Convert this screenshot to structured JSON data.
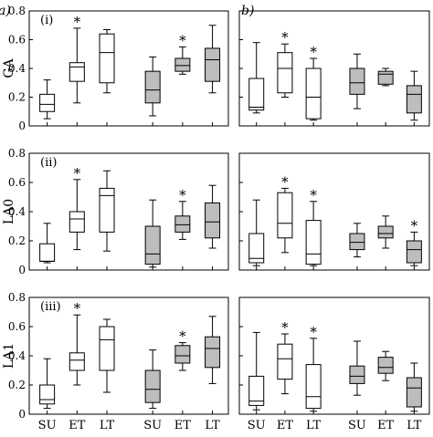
{
  "figure": {
    "panel_labels": [
      "a)",
      "b)"
    ],
    "row_labels": [
      "(i)",
      "(ii)",
      "(iii)"
    ],
    "star_label": "*"
  },
  "chart_data": [
    {
      "type": "box",
      "column": "a",
      "row": "i",
      "ylabel": "GA",
      "ylim": [
        0,
        0.8
      ],
      "yticks": [
        "0",
        "0.2",
        "0.4",
        "0.6",
        "0.8"
      ],
      "categories": [
        "SU",
        "ET",
        "LT",
        "SU",
        "ET",
        "LT"
      ],
      "groups": [
        "open",
        "open",
        "open",
        "filled",
        "filled",
        "filled"
      ],
      "boxes": [
        {
          "min": 0.05,
          "q1": 0.1,
          "median": 0.15,
          "q3": 0.22,
          "max": 0.32
        },
        {
          "min": 0.16,
          "q1": 0.31,
          "median": 0.41,
          "q3": 0.44,
          "max": 0.68,
          "star": true
        },
        {
          "min": 0.23,
          "q1": 0.3,
          "median": 0.51,
          "q3": 0.64,
          "max": 0.67
        },
        {
          "min": 0.07,
          "q1": 0.16,
          "median": 0.25,
          "q3": 0.38,
          "max": 0.48
        },
        {
          "min": 0.36,
          "q1": 0.38,
          "median": 0.42,
          "q3": 0.47,
          "max": 0.55,
          "star": true
        },
        {
          "min": 0.23,
          "q1": 0.31,
          "median": 0.46,
          "q3": 0.54,
          "max": 0.7
        }
      ]
    },
    {
      "type": "box",
      "column": "b",
      "row": "i",
      "ylabel": "",
      "ylim": [
        0,
        0.8
      ],
      "yticks": [],
      "categories": [
        "SU",
        "ET",
        "LT",
        "SU",
        "ET",
        "LT"
      ],
      "groups": [
        "open",
        "open",
        "open",
        "filled",
        "filled",
        "filled"
      ],
      "boxes": [
        {
          "min": 0.09,
          "q1": 0.11,
          "median": 0.13,
          "q3": 0.33,
          "max": 0.58
        },
        {
          "min": 0.2,
          "q1": 0.23,
          "median": 0.4,
          "q3": 0.51,
          "max": 0.57,
          "star": true
        },
        {
          "min": 0.04,
          "q1": 0.05,
          "median": 0.2,
          "q3": 0.4,
          "max": 0.47,
          "star": true
        },
        {
          "min": 0.12,
          "q1": 0.22,
          "median": 0.3,
          "q3": 0.4,
          "max": 0.5
        },
        {
          "min": 0.28,
          "q1": 0.29,
          "median": 0.36,
          "q3": 0.38,
          "max": 0.4
        },
        {
          "min": 0.04,
          "q1": 0.09,
          "median": 0.22,
          "q3": 0.28,
          "max": 0.38
        }
      ]
    },
    {
      "type": "box",
      "column": "a",
      "row": "ii",
      "ylabel": "LA0",
      "ylim": [
        0,
        0.8
      ],
      "yticks": [
        "0",
        "0.2",
        "0.4",
        "0.6",
        "0.8"
      ],
      "categories": [
        "SU",
        "ET",
        "LT",
        "SU",
        "ET",
        "LT"
      ],
      "groups": [
        "open",
        "open",
        "open",
        "filled",
        "filled",
        "filled"
      ],
      "boxes": [
        {
          "min": 0.05,
          "q1": 0.06,
          "median": 0.06,
          "q3": 0.18,
          "max": 0.32
        },
        {
          "min": 0.14,
          "q1": 0.26,
          "median": 0.35,
          "q3": 0.4,
          "max": 0.62,
          "star": true
        },
        {
          "min": 0.13,
          "q1": 0.26,
          "median": 0.51,
          "q3": 0.56,
          "max": 0.68
        },
        {
          "min": 0.02,
          "q1": 0.04,
          "median": 0.11,
          "q3": 0.3,
          "max": 0.48
        },
        {
          "min": 0.21,
          "q1": 0.26,
          "median": 0.31,
          "q3": 0.37,
          "max": 0.47,
          "star": true
        },
        {
          "min": 0.15,
          "q1": 0.22,
          "median": 0.33,
          "q3": 0.46,
          "max": 0.58
        }
      ]
    },
    {
      "type": "box",
      "column": "b",
      "row": "ii",
      "ylabel": "",
      "ylim": [
        0,
        0.8
      ],
      "yticks": [],
      "categories": [
        "SU",
        "ET",
        "LT",
        "SU",
        "ET",
        "LT"
      ],
      "groups": [
        "open",
        "open",
        "open",
        "filled",
        "filled",
        "filled"
      ],
      "boxes": [
        {
          "min": 0.03,
          "q1": 0.05,
          "median": 0.08,
          "q3": 0.25,
          "max": 0.48
        },
        {
          "min": 0.12,
          "q1": 0.22,
          "median": 0.32,
          "q3": 0.53,
          "max": 0.56,
          "star": true
        },
        {
          "min": 0.03,
          "q1": 0.04,
          "median": 0.11,
          "q3": 0.34,
          "max": 0.47,
          "star": true
        },
        {
          "min": 0.09,
          "q1": 0.14,
          "median": 0.19,
          "q3": 0.25,
          "max": 0.32
        },
        {
          "min": 0.15,
          "q1": 0.22,
          "median": 0.25,
          "q3": 0.3,
          "max": 0.37
        },
        {
          "min": 0.03,
          "q1": 0.05,
          "median": 0.14,
          "q3": 0.2,
          "max": 0.26,
          "star": true
        }
      ]
    },
    {
      "type": "box",
      "column": "a",
      "row": "iii",
      "ylabel": "LA1",
      "ylim": [
        0,
        0.8
      ],
      "yticks": [
        "0",
        "0.2",
        "0.4",
        "0.6",
        "0.8"
      ],
      "categories": [
        "SU",
        "ET",
        "LT",
        "SU",
        "ET",
        "LT"
      ],
      "groups": [
        "open",
        "open",
        "open",
        "filled",
        "filled",
        "filled"
      ],
      "boxes": [
        {
          "min": 0.04,
          "q1": 0.07,
          "median": 0.1,
          "q3": 0.2,
          "max": 0.38
        },
        {
          "min": 0.2,
          "q1": 0.3,
          "median": 0.37,
          "q3": 0.42,
          "max": 0.68,
          "star": true
        },
        {
          "min": 0.15,
          "q1": 0.3,
          "median": 0.51,
          "q3": 0.6,
          "max": 0.65
        },
        {
          "min": 0.04,
          "q1": 0.08,
          "median": 0.17,
          "q3": 0.3,
          "max": 0.44
        },
        {
          "min": 0.3,
          "q1": 0.35,
          "median": 0.4,
          "q3": 0.47,
          "max": 0.49,
          "star": true
        },
        {
          "min": 0.21,
          "q1": 0.32,
          "median": 0.45,
          "q3": 0.53,
          "max": 0.67
        }
      ]
    },
    {
      "type": "box",
      "column": "b",
      "row": "iii",
      "ylabel": "",
      "ylim": [
        0,
        0.8
      ],
      "yticks": [],
      "categories": [
        "SU",
        "ET",
        "LT",
        "SU",
        "ET",
        "LT"
      ],
      "groups": [
        "open",
        "open",
        "open",
        "filled",
        "filled",
        "filled"
      ],
      "boxes": [
        {
          "min": 0.03,
          "q1": 0.06,
          "median": 0.09,
          "q3": 0.26,
          "max": 0.56
        },
        {
          "min": 0.14,
          "q1": 0.24,
          "median": 0.38,
          "q3": 0.48,
          "max": 0.55,
          "star": true
        },
        {
          "min": 0.02,
          "q1": 0.04,
          "median": 0.12,
          "q3": 0.34,
          "max": 0.52,
          "star": true
        },
        {
          "min": 0.13,
          "q1": 0.21,
          "median": 0.26,
          "q3": 0.33,
          "max": 0.5
        },
        {
          "min": 0.23,
          "q1": 0.28,
          "median": 0.32,
          "q3": 0.39,
          "max": 0.43
        },
        {
          "min": 0.02,
          "q1": 0.05,
          "median": 0.18,
          "q3": 0.25,
          "max": 0.35
        }
      ]
    }
  ]
}
